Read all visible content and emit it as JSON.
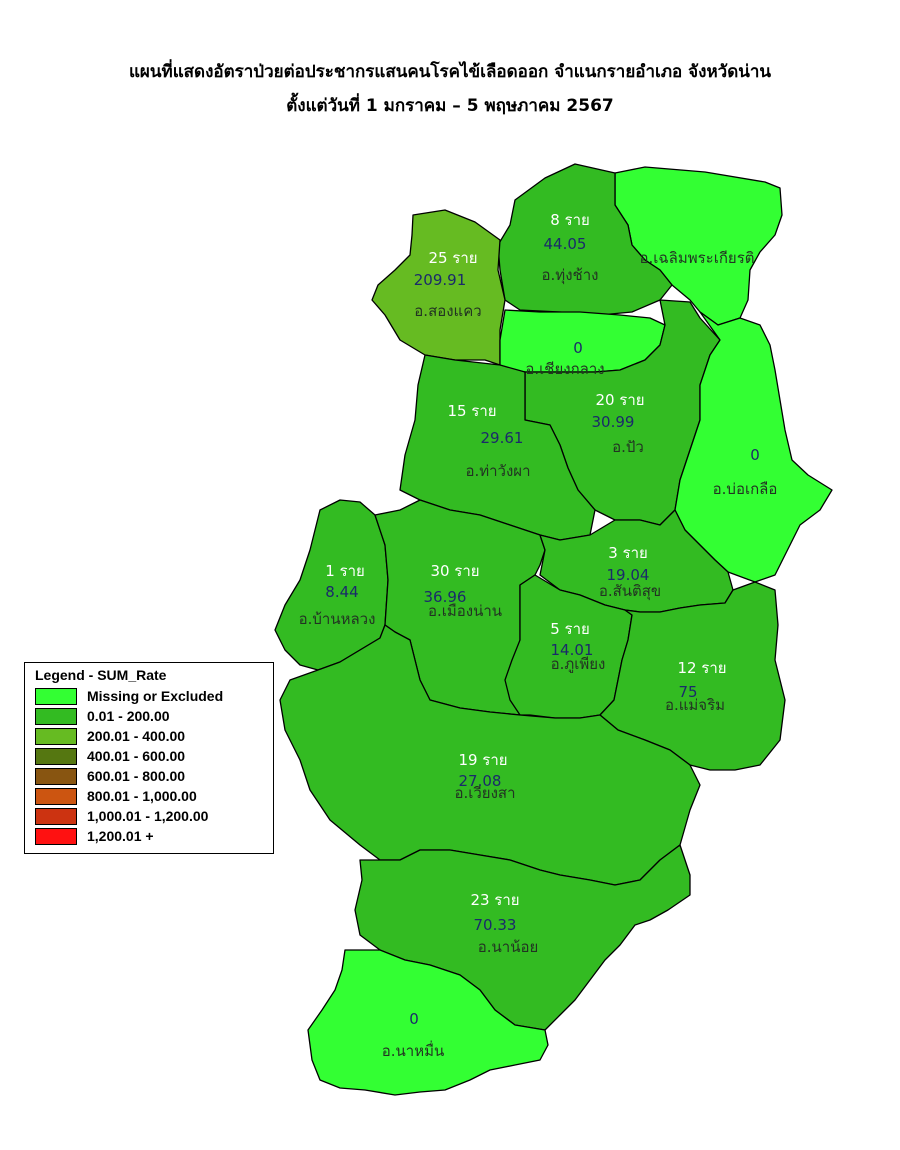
{
  "title": {
    "line1": "แผนที่แสดงอัตราป่วยต่อประชากรแสนคนโรคไข้เลือดออก จำแนกรายอำเภอ จังหวัดน่าน",
    "line2": "ตั้งแต่วันที่ 1 มกราคม – 5 พฤษภาคม 2567"
  },
  "colors": {
    "missing": "#33ff33",
    "range_1": "#33bb22",
    "range_2": "#66bb22",
    "range_3": "#557711",
    "range_4": "#885511",
    "range_5": "#cc5511",
    "range_6": "#cc3311",
    "range_7": "#ff1111",
    "case_label": "#ffffff",
    "rate_label": "#1a2a6a",
    "name_label": "#223322",
    "border": "#000000"
  },
  "legend": {
    "title": "Legend - SUM_Rate",
    "items": [
      {
        "label": "Missing or Excluded",
        "color": "#33ff33"
      },
      {
        "label": "0.01 - 200.00",
        "color": "#33bb22"
      },
      {
        "label": "200.01 - 400.00",
        "color": "#66bb22"
      },
      {
        "label": "400.01 - 600.00",
        "color": "#557711"
      },
      {
        "label": "600.01 - 800.00",
        "color": "#885511"
      },
      {
        "label": "800.01 - 1,000.00",
        "color": "#cc5511"
      },
      {
        "label": "1,000.01 - 1,200.00",
        "color": "#cc3311"
      },
      {
        "label": "1,200.01 +",
        "color": "#ff1111"
      }
    ]
  },
  "districts": {
    "thung_chang": {
      "name": "อ.ทุ่งช้าง",
      "cases": "8 ราย",
      "rate": "44.05",
      "fill": "#33bb22"
    },
    "chaloem": {
      "name": "อ.เฉลิมพระเกียรติ",
      "cases": "",
      "rate": "",
      "fill": "#33ff33"
    },
    "song_khwae": {
      "name": "อ.สองแคว",
      "cases": "25 ราย",
      "rate": "209.91",
      "fill": "#66bb22"
    },
    "chiang_klang": {
      "name": "อ.เชียงกลาง",
      "cases": "",
      "rate": "0",
      "fill": "#33ff33"
    },
    "pua": {
      "name": "อ.ปัว",
      "cases": "20 ราย",
      "rate": "30.99",
      "fill": "#33bb22"
    },
    "tha_wang_pha": {
      "name": "อ.ท่าวังผา",
      "cases": "15 ราย",
      "rate": "29.61",
      "fill": "#33bb22"
    },
    "bo_kluea": {
      "name": "อ.บ่อเกลือ",
      "cases": "",
      "rate": "0",
      "fill": "#33ff33"
    },
    "ban_luang": {
      "name": "อ.บ้านหลวง",
      "cases": "1 ราย",
      "rate": "8.44",
      "fill": "#33bb22"
    },
    "mueang_nan": {
      "name": "อ.เมืองน่าน",
      "cases": "30 ราย",
      "rate": "36.96",
      "fill": "#33bb22"
    },
    "santi_suk": {
      "name": "อ.สันติสุข",
      "cases": "3 ราย",
      "rate": "19.04",
      "fill": "#33bb22"
    },
    "phu_phiang": {
      "name": "อ.ภูเพียง",
      "cases": "5 ราย",
      "rate": "14.01",
      "fill": "#33bb22"
    },
    "mae_charim": {
      "name": "อ.แม่จริม",
      "cases": "12 ราย",
      "rate": "75",
      "fill": "#33bb22"
    },
    "wiang_sa": {
      "name": "อ.เวียงสา",
      "cases": "19 ราย",
      "rate": "27.08",
      "fill": "#33bb22"
    },
    "na_noi": {
      "name": "อ.นาน้อย",
      "cases": "23 ราย",
      "rate": "70.33",
      "fill": "#33bb22"
    },
    "na_muen": {
      "name": "อ.นาหมื่น",
      "cases": "",
      "rate": "0",
      "fill": "#33ff33"
    }
  }
}
